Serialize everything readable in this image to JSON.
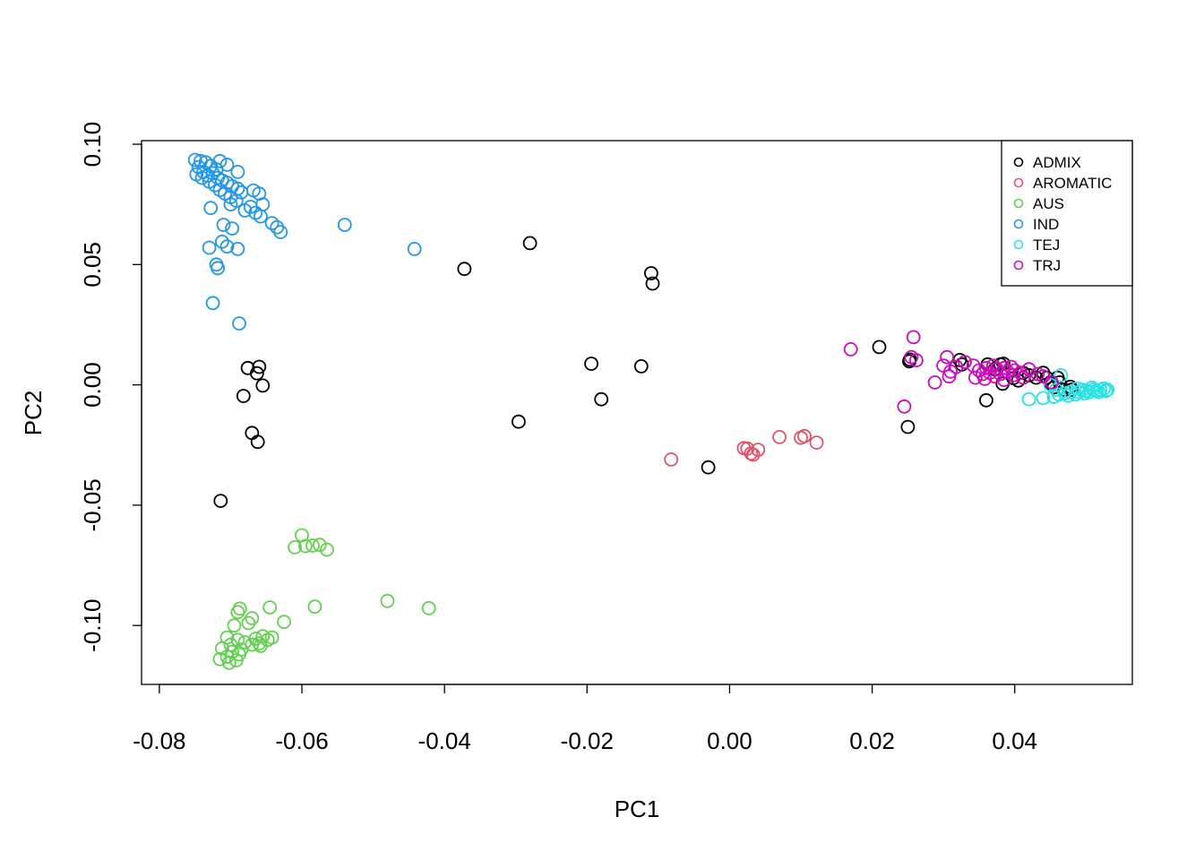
{
  "chart_data": {
    "type": "scatter",
    "title": "",
    "xlabel": "PC1",
    "ylabel": "PC2",
    "xlim": [
      -0.0825,
      0.0565
    ],
    "ylim": [
      -0.1245,
      0.1015
    ],
    "grid": false,
    "legend_position": "top-right",
    "x_ticks": [
      -0.08,
      -0.06,
      -0.04,
      -0.02,
      0.0,
      0.02,
      0.04
    ],
    "x_tick_labels": [
      "-0.08",
      "-0.06",
      "-0.04",
      "-0.02",
      "0.00",
      "0.02",
      "0.04"
    ],
    "y_ticks": [
      0.1,
      0.05,
      0.0,
      -0.05,
      -0.1
    ],
    "y_tick_labels": [
      "0.10",
      "0.05",
      "0.00",
      "-0.05",
      "-0.10"
    ],
    "series": [
      {
        "name": "ADMIX",
        "color": "#000000",
        "points": [
          [
            -0.0372,
            0.0482
          ],
          [
            -0.028,
            0.0589
          ],
          [
            -0.011,
            0.0464
          ],
          [
            -0.0108,
            0.0421
          ],
          [
            -0.0676,
            0.007
          ],
          [
            -0.066,
            0.0075
          ],
          [
            -0.0663,
            0.0048
          ],
          [
            -0.0655,
            -0.0003
          ],
          [
            -0.0682,
            -0.0046
          ],
          [
            -0.067,
            -0.02
          ],
          [
            -0.0662,
            -0.0237
          ],
          [
            -0.0714,
            -0.0482
          ],
          [
            -0.0194,
            0.0088
          ],
          [
            -0.0124,
            0.0077
          ],
          [
            -0.018,
            -0.006
          ],
          [
            -0.0296,
            -0.0153
          ],
          [
            -0.003,
            -0.0343
          ],
          [
            0.021,
            0.0157
          ],
          [
            0.0252,
            0.0098
          ],
          [
            0.0253,
            0.0105
          ],
          [
            0.025,
            -0.0175
          ],
          [
            0.0323,
            0.0103
          ],
          [
            0.0326,
            0.0085
          ],
          [
            0.036,
            -0.0064
          ],
          [
            0.0362,
            0.0085
          ],
          [
            0.0372,
            0.0065
          ],
          [
            0.038,
            0.0085
          ],
          [
            0.0384,
            0.0088
          ],
          [
            0.0383,
            0.0005
          ],
          [
            0.0398,
            0.0028
          ],
          [
            0.0405,
            0.0018
          ],
          [
            0.0412,
            0.005
          ],
          [
            0.042,
            0.004
          ],
          [
            0.043,
            0.003
          ],
          [
            0.044,
            0.005
          ],
          [
            0.0445,
            0.003
          ],
          [
            0.045,
            0.001
          ],
          [
            0.0455,
            -0.001
          ],
          [
            0.046,
            0.003
          ],
          [
            0.0463,
            0.001
          ],
          [
            0.047,
            -0.002
          ],
          [
            0.0478,
            -0.0008
          ],
          [
            0.048,
            -0.002
          ]
        ]
      },
      {
        "name": "AROMATIC",
        "color": "#df536b",
        "points": [
          [
            -0.0082,
            -0.031
          ],
          [
            0.002,
            -0.0263
          ],
          [
            0.0025,
            -0.0265
          ],
          [
            0.003,
            -0.0285
          ],
          [
            0.0033,
            -0.029
          ],
          [
            0.004,
            -0.027
          ],
          [
            0.007,
            -0.0217
          ],
          [
            0.01,
            -0.022
          ],
          [
            0.0105,
            -0.0213
          ],
          [
            0.0122,
            -0.024
          ]
        ]
      },
      {
        "name": "AUS",
        "color": "#61d04f",
        "points": [
          [
            -0.06,
            -0.0625
          ],
          [
            -0.061,
            -0.0675
          ],
          [
            -0.0595,
            -0.067
          ],
          [
            -0.0585,
            -0.0668
          ],
          [
            -0.0575,
            -0.0665
          ],
          [
            -0.0565,
            -0.0685
          ],
          [
            -0.0582,
            -0.0922
          ],
          [
            -0.048,
            -0.0898
          ],
          [
            -0.0422,
            -0.0928
          ],
          [
            -0.0687,
            -0.093
          ],
          [
            -0.0645,
            -0.0925
          ],
          [
            -0.0625,
            -0.0985
          ],
          [
            -0.069,
            -0.0945
          ],
          [
            -0.067,
            -0.097
          ],
          [
            -0.0695,
            -0.1
          ],
          [
            -0.0675,
            -0.099
          ],
          [
            -0.0705,
            -0.105
          ],
          [
            -0.069,
            -0.106
          ],
          [
            -0.068,
            -0.107
          ],
          [
            -0.0665,
            -0.1055
          ],
          [
            -0.0655,
            -0.1045
          ],
          [
            -0.066,
            -0.1075
          ],
          [
            -0.0648,
            -0.106
          ],
          [
            -0.0642,
            -0.105
          ],
          [
            -0.07,
            -0.108
          ],
          [
            -0.0712,
            -0.1095
          ],
          [
            -0.0698,
            -0.111
          ],
          [
            -0.0688,
            -0.112
          ],
          [
            -0.0705,
            -0.113
          ],
          [
            -0.0692,
            -0.1145
          ],
          [
            -0.0702,
            -0.1155
          ],
          [
            -0.0715,
            -0.114
          ],
          [
            -0.0685,
            -0.11
          ],
          [
            -0.067,
            -0.108
          ],
          [
            -0.0658,
            -0.1085
          ]
        ]
      },
      {
        "name": "IND",
        "color": "#2297e6",
        "points": [
          [
            -0.075,
            0.0935
          ],
          [
            -0.0742,
            0.093
          ],
          [
            -0.0735,
            0.0925
          ],
          [
            -0.0728,
            0.091
          ],
          [
            -0.0715,
            0.093
          ],
          [
            -0.0705,
            0.0915
          ],
          [
            -0.069,
            0.0885
          ],
          [
            -0.0745,
            0.0905
          ],
          [
            -0.0738,
            0.0885
          ],
          [
            -0.0732,
            0.087
          ],
          [
            -0.0725,
            0.088
          ],
          [
            -0.0718,
            0.086
          ],
          [
            -0.0712,
            0.085
          ],
          [
            -0.0705,
            0.084
          ],
          [
            -0.0698,
            0.0825
          ],
          [
            -0.069,
            0.0815
          ],
          [
            -0.074,
            0.086
          ],
          [
            -0.073,
            0.0845
          ],
          [
            -0.0722,
            0.083
          ],
          [
            -0.0715,
            0.081
          ],
          [
            -0.0708,
            0.0795
          ],
          [
            -0.07,
            0.078
          ],
          [
            -0.0692,
            0.0765
          ],
          [
            -0.0685,
            0.08
          ],
          [
            -0.0668,
            0.0808
          ],
          [
            -0.066,
            0.0795
          ],
          [
            -0.0655,
            0.075
          ],
          [
            -0.0672,
            0.074
          ],
          [
            -0.068,
            0.0725
          ],
          [
            -0.0665,
            0.0715
          ],
          [
            -0.0658,
            0.07
          ],
          [
            -0.0642,
            0.0672
          ],
          [
            -0.0635,
            0.0655
          ],
          [
            -0.063,
            0.0635
          ],
          [
            -0.071,
            0.0665
          ],
          [
            -0.0698,
            0.065
          ],
          [
            -0.0712,
            0.0595
          ],
          [
            -0.0705,
            0.0575
          ],
          [
            -0.069,
            0.0565
          ],
          [
            -0.073,
            0.057
          ],
          [
            -0.072,
            0.05
          ],
          [
            -0.0718,
            0.0485
          ],
          [
            -0.0728,
            0.0735
          ],
          [
            -0.0725,
            0.034
          ],
          [
            -0.0688,
            0.0255
          ],
          [
            -0.054,
            0.0665
          ],
          [
            -0.0442,
            0.0565
          ],
          [
            -0.0748,
            0.0875
          ],
          [
            -0.072,
            0.0895
          ],
          [
            -0.07,
            0.075
          ]
        ]
      },
      {
        "name": "TEJ",
        "color": "#28e2e5",
        "points": [
          [
            0.042,
            -0.006
          ],
          [
            0.044,
            -0.0055
          ],
          [
            0.0455,
            -0.005
          ],
          [
            0.0462,
            -0.004
          ],
          [
            0.047,
            -0.0035
          ],
          [
            0.0478,
            -0.003
          ],
          [
            0.0485,
            -0.004
          ],
          [
            0.049,
            -0.003
          ],
          [
            0.0495,
            -0.002
          ],
          [
            0.05,
            -0.0025
          ],
          [
            0.0505,
            -0.003
          ],
          [
            0.051,
            -0.002
          ],
          [
            0.0515,
            -0.0025
          ],
          [
            0.052,
            -0.002
          ],
          [
            0.0525,
            -0.0015
          ],
          [
            0.053,
            -0.002
          ],
          [
            0.0465,
            0.004
          ],
          [
            0.045,
            0.0
          ],
          [
            0.0475,
            -0.0045
          ],
          [
            0.0498,
            -0.0035
          ],
          [
            0.0508,
            -0.0012
          ],
          [
            0.0518,
            -0.003
          ],
          [
            0.0488,
            -0.0015
          ],
          [
            0.0458,
            -0.002
          ],
          [
            0.0528,
            -0.0025
          ]
        ]
      },
      {
        "name": "TRJ",
        "color": "#cd0bbc",
        "points": [
          [
            0.017,
            0.0148
          ],
          [
            0.0258,
            0.0198
          ],
          [
            0.0255,
            0.0115
          ],
          [
            0.0262,
            0.0102
          ],
          [
            0.0245,
            -0.009
          ],
          [
            0.0288,
            0.001
          ],
          [
            0.03,
            0.008
          ],
          [
            0.0305,
            0.0115
          ],
          [
            0.031,
            0.0055
          ],
          [
            0.0308,
            0.0035
          ],
          [
            0.0318,
            0.0075
          ],
          [
            0.033,
            0.0095
          ],
          [
            0.0342,
            0.008
          ],
          [
            0.035,
            0.006
          ],
          [
            0.0355,
            0.0045
          ],
          [
            0.036,
            0.007
          ],
          [
            0.0365,
            0.005
          ],
          [
            0.037,
            0.008
          ],
          [
            0.0375,
            0.0065
          ],
          [
            0.038,
            0.0045
          ],
          [
            0.0385,
            0.007
          ],
          [
            0.039,
            0.0055
          ],
          [
            0.0395,
            0.0075
          ],
          [
            0.04,
            0.006
          ],
          [
            0.0408,
            0.005
          ],
          [
            0.042,
            0.0065
          ],
          [
            0.0432,
            0.0045
          ],
          [
            0.0345,
            0.003
          ],
          [
            0.0358,
            0.0025
          ],
          [
            0.0372,
            0.0035
          ],
          [
            0.0385,
            0.002
          ],
          [
            0.0398,
            0.004
          ],
          [
            0.0412,
            0.003
          ],
          [
            0.044,
            0.0035
          ],
          [
            0.0452,
            0.001
          ]
        ]
      }
    ]
  }
}
